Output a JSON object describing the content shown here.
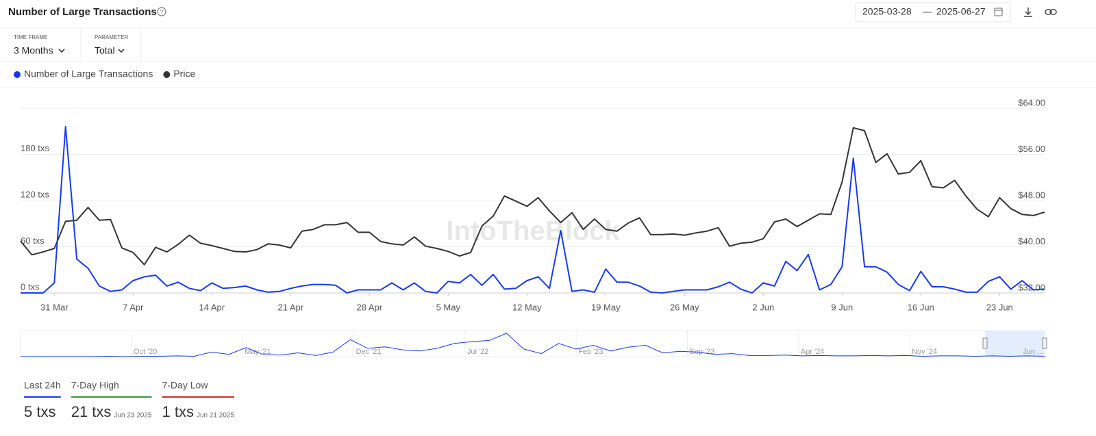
{
  "header": {
    "title": "Number of Large Transactions",
    "date_from": "2025-03-28",
    "date_to": "2025-06-27"
  },
  "filters": [
    {
      "label": "TIME FRAME",
      "value": "3 Months"
    },
    {
      "label": "PARAMETER",
      "value": "Total"
    }
  ],
  "chart_data": {
    "type": "line",
    "watermark": "IntoTheBlock",
    "categories": [
      null,
      null,
      null,
      "31 Mar",
      null,
      null,
      null,
      null,
      null,
      null,
      "7 Apr",
      null,
      null,
      null,
      null,
      null,
      null,
      "14 Apr",
      null,
      null,
      null,
      null,
      null,
      null,
      "21 Apr",
      null,
      null,
      null,
      null,
      null,
      null,
      "28 Apr",
      null,
      null,
      null,
      null,
      null,
      null,
      "5 May",
      null,
      null,
      null,
      null,
      null,
      null,
      "12 May",
      null,
      null,
      null,
      null,
      null,
      null,
      "19 May",
      null,
      null,
      null,
      null,
      null,
      null,
      "26 May",
      null,
      null,
      null,
      null,
      null,
      null,
      "2 Jun",
      null,
      null,
      null,
      null,
      null,
      null,
      "9 Jun",
      null,
      null,
      null,
      null,
      null,
      null,
      "16 Jun",
      null,
      null,
      null,
      null,
      null,
      null,
      "23 Jun",
      null,
      null,
      null,
      null
    ],
    "series": [
      {
        "name": "Number of Large Transactions",
        "color": "#1739f0",
        "axis": "y",
        "values": [
          0,
          0,
          0,
          13,
          216,
          44,
          32,
          9,
          2,
          4,
          16,
          21,
          23,
          9,
          14,
          6,
          3,
          13,
          6,
          7,
          9,
          4,
          1,
          2,
          6,
          9,
          11,
          11,
          10,
          0,
          4,
          4,
          4,
          13,
          4,
          13,
          2,
          0,
          15,
          13,
          24,
          10,
          24,
          5,
          6,
          16,
          21,
          6,
          81,
          2,
          4,
          1,
          31,
          14,
          14,
          9,
          1,
          0,
          2,
          4,
          4,
          4,
          8,
          14,
          5,
          0,
          13,
          9,
          41,
          29,
          50,
          4,
          11,
          34,
          175,
          34,
          34,
          27,
          11,
          3,
          28,
          8,
          8,
          5,
          1,
          1,
          15,
          21,
          5,
          16,
          4,
          5
        ]
      },
      {
        "name": "Price",
        "color": "#333333",
        "axis": "y2",
        "values": [
          41.0,
          38.6,
          39.1,
          39.7,
          44.4,
          44.6,
          46.8,
          44.6,
          44.7,
          39.8,
          39.0,
          36.9,
          39.9,
          39.1,
          40.4,
          42.0,
          40.6,
          40.2,
          39.7,
          39.2,
          39.1,
          39.5,
          40.5,
          40.3,
          39.8,
          42.7,
          43.0,
          43.8,
          43.8,
          44.2,
          42.5,
          42.5,
          40.9,
          40.5,
          40.3,
          41.7,
          40.1,
          39.7,
          39.2,
          38.4,
          39.0,
          43.6,
          45.3,
          48.8,
          47.9,
          47.0,
          48.5,
          46.2,
          44.2,
          45.9,
          43.0,
          44.8,
          43.0,
          42.7,
          44.1,
          45.0,
          42.1,
          42.1,
          42.2,
          42.0,
          42.4,
          42.7,
          43.3,
          40.1,
          40.6,
          40.8,
          41.4,
          44.3,
          44.8,
          43.5,
          44.6,
          45.7,
          45.6,
          51.2,
          60.6,
          60.1,
          54.6,
          56.1,
          52.6,
          52.9,
          54.9,
          50.4,
          50.2,
          51.5,
          48.8,
          46.5,
          45.2,
          48.5,
          46.6,
          45.6,
          45.4,
          46.0
        ]
      }
    ],
    "ylim": [
      0,
      240
    ],
    "yticks": [
      {
        "value": 0,
        "label": "0 txs"
      },
      {
        "value": 60,
        "label": "60 txs"
      },
      {
        "value": 120,
        "label": "120 txs"
      },
      {
        "value": 180,
        "label": "180 txs"
      }
    ],
    "y2lim": [
      32,
      64
    ],
    "y2ticks": [
      {
        "value": 32,
        "label": "$32.00"
      },
      {
        "value": 40,
        "label": "$40.00"
      },
      {
        "value": 48,
        "label": "$48.00"
      },
      {
        "value": 56,
        "label": "$56.00"
      },
      {
        "value": 64,
        "label": "$64.00"
      }
    ],
    "grid": true
  },
  "navigator": {
    "labels": [
      "Oct '20",
      "May '21",
      "Dec '21",
      "Jul '22",
      "Feb '23",
      "Sep '23",
      "Apr '24",
      "Nov '24",
      "Jun ..."
    ],
    "values": [
      0,
      0,
      0,
      0,
      0,
      1,
      0,
      1,
      1,
      2,
      1,
      12,
      6,
      24,
      5,
      4,
      10,
      3,
      12,
      45,
      22,
      26,
      18,
      15,
      22,
      35,
      40,
      43,
      62,
      20,
      8,
      35,
      20,
      30,
      15,
      25,
      30,
      10,
      14,
      12,
      6,
      8,
      3,
      3,
      4,
      2,
      3,
      2,
      2,
      3,
      2,
      3,
      1,
      2,
      2,
      1,
      2,
      1,
      2,
      1
    ]
  },
  "stats": [
    {
      "label": "Last 24h",
      "value": "5 txs",
      "color": "#1739f0"
    },
    {
      "label": "7-Day High",
      "value": "21 txs",
      "date": "Jun 23 2025",
      "color": "#2e9b3a"
    },
    {
      "label": "7-Day Low",
      "value": "1 txs",
      "date": "Jun 21 2025",
      "color": "#d62b2b"
    }
  ]
}
